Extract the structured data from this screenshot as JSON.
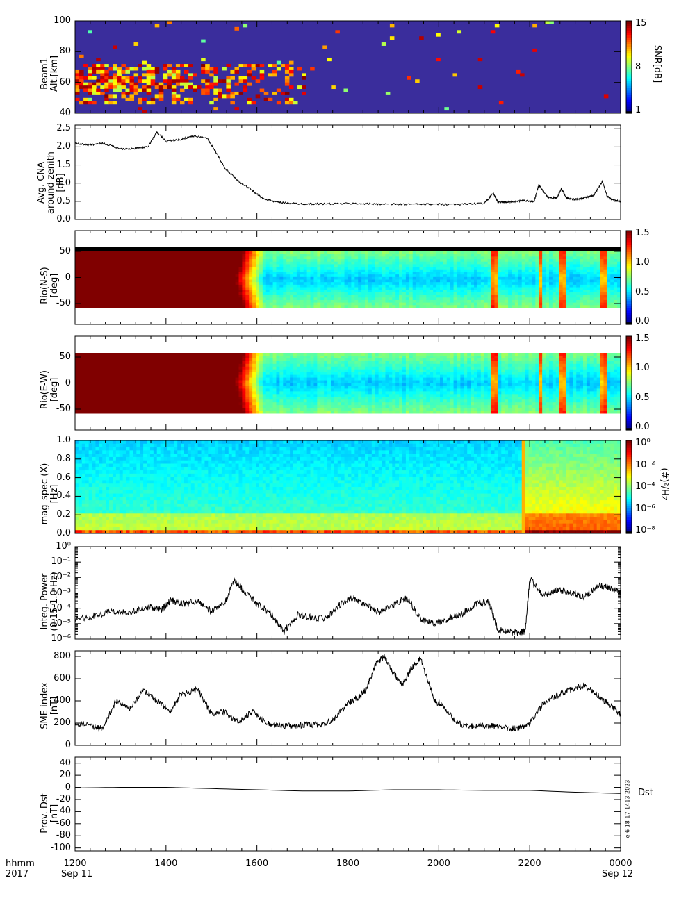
{
  "bottom_labels": {
    "hhmm": "hhmm",
    "year": "2017",
    "start_date": "Sep 11",
    "end_date": "Sep 12"
  },
  "side_annotation": "e 6 18 17 1413 2023",
  "dst_legend": "Dst",
  "x_ticks": [
    "1200",
    "1400",
    "1600",
    "1800",
    "2000",
    "2200",
    "0000"
  ],
  "chart_data": [
    {
      "type": "heatmap",
      "ylabel_line1": "Beam1",
      "ylabel_line2": "Alt.[km]",
      "yticks": [
        "40",
        "60",
        "80",
        "100"
      ],
      "ylim": [
        40,
        100
      ],
      "colorbar": {
        "label": "SNR[dB]",
        "ticks": [
          "1",
          "8",
          "15"
        ],
        "range": [
          1,
          15
        ]
      },
      "features": {
        "strong_layer_alt_km": [
          45,
          72
        ],
        "strong_layer_end_hour": 17.0
      }
    },
    {
      "type": "line",
      "ylabel_line1": "Avg. CNA",
      "ylabel_line2": "around zenith",
      "ylabel_line3": "[dB]",
      "yticks": [
        "0.0",
        "0.5",
        "1.0",
        "1.5",
        "2.0",
        "2.5"
      ],
      "ylim": [
        0,
        2.6
      ],
      "x_hours": [
        12.0,
        12.3,
        12.6,
        13.0,
        13.3,
        13.6,
        13.8,
        14.0,
        14.3,
        14.6,
        14.9,
        15.1,
        15.3,
        15.6,
        15.9,
        16.1,
        16.4,
        16.7,
        17.0,
        17.5,
        18.0,
        18.5,
        19.0,
        19.5,
        20.0,
        20.5,
        21.0,
        21.2,
        21.3,
        21.5,
        21.7,
        21.9,
        22.1,
        22.2,
        22.4,
        22.6,
        22.7,
        22.8,
        23.0,
        23.2,
        23.4,
        23.6,
        23.7,
        23.8,
        24.0
      ],
      "values": [
        2.1,
        2.05,
        2.1,
        1.95,
        1.95,
        2.0,
        2.4,
        2.15,
        2.2,
        2.3,
        2.25,
        1.85,
        1.4,
        1.05,
        0.8,
        0.6,
        0.48,
        0.45,
        0.43,
        0.43,
        0.44,
        0.43,
        0.42,
        0.42,
        0.42,
        0.42,
        0.45,
        0.72,
        0.48,
        0.48,
        0.5,
        0.52,
        0.5,
        0.95,
        0.6,
        0.6,
        0.85,
        0.6,
        0.55,
        0.6,
        0.65,
        1.05,
        0.65,
        0.55,
        0.5
      ]
    },
    {
      "type": "heatmap",
      "ylabel_line1": "Rio(N-S)",
      "ylabel_line2": "[deg]",
      "yticks": [
        "-50",
        "0",
        "50"
      ],
      "ylim": [
        -90,
        90
      ],
      "colorbar": {
        "ticks": [
          "0.0",
          "0.5",
          "1.0",
          "1.5"
        ],
        "range": [
          0,
          1.8
        ]
      },
      "features": {
        "saturated_until_hour": 15.5,
        "spikes_hours": [
          21.2,
          22.2,
          22.7,
          23.6
        ]
      }
    },
    {
      "type": "heatmap",
      "ylabel_line1": "Rio(E-W)",
      "ylabel_line2": "[deg]",
      "yticks": [
        "-50",
        "0",
        "50"
      ],
      "ylim": [
        -90,
        90
      ],
      "colorbar": {
        "ticks": [
          "0.0",
          "0.5",
          "1.0",
          "1.5"
        ],
        "range": [
          0,
          1.8
        ]
      },
      "features": {
        "saturated_until_hour": 15.5,
        "spikes_hours": [
          21.2,
          22.2,
          22.7,
          23.6
        ]
      }
    },
    {
      "type": "heatmap",
      "ylabel_line1": "mag_spec (X)",
      "ylabel_line2": "[Hz]",
      "yticks": [
        "0.0",
        "0.2",
        "0.4",
        "0.6",
        "0.8",
        "1.0"
      ],
      "ylim": [
        0,
        1.0
      ],
      "colorbar": {
        "label": "(#)²/Hz",
        "ticks": [
          "10⁻⁸",
          "10⁻⁶",
          "10⁻⁴",
          "10⁻²",
          "10⁰"
        ],
        "log": true
      },
      "features": {
        "broadband_onset_hour": 21.8
      }
    },
    {
      "type": "line",
      "ylabel_line1": "Integ. Power",
      "ylabel_line2": "(0.15-1.0 Hz)",
      "yticks": [
        "10⁻⁶",
        "10⁻⁵",
        "10⁻⁴",
        "10⁻³",
        "10⁻²",
        "10⁻¹",
        "10⁰"
      ],
      "yscale": "log",
      "ylim_exp": [
        -6,
        0
      ],
      "x_hours": [
        12.0,
        12.4,
        12.8,
        13.2,
        13.6,
        13.9,
        14.1,
        14.4,
        14.7,
        15.0,
        15.3,
        15.5,
        15.7,
        16.0,
        16.3,
        16.6,
        16.9,
        17.2,
        17.5,
        17.8,
        18.1,
        18.4,
        18.7,
        19.0,
        19.3,
        19.6,
        19.9,
        20.2,
        20.5,
        20.8,
        21.1,
        21.3,
        21.6,
        21.8,
        21.9,
        22.0,
        22.3,
        22.6,
        22.9,
        23.2,
        23.5,
        23.8,
        24.0
      ],
      "values_log10": [
        -4.7,
        -4.5,
        -4.2,
        -4.3,
        -3.9,
        -4.1,
        -3.5,
        -3.7,
        -3.5,
        -4.2,
        -3.6,
        -2.2,
        -2.8,
        -3.7,
        -4.3,
        -5.5,
        -4.4,
        -4.6,
        -4.7,
        -3.8,
        -3.3,
        -3.8,
        -4.3,
        -3.8,
        -3.3,
        -4.7,
        -5.0,
        -4.7,
        -4.4,
        -3.7,
        -3.6,
        -5.4,
        -5.6,
        -5.6,
        -5.5,
        -2.1,
        -3.2,
        -2.8,
        -3.0,
        -3.3,
        -2.5,
        -2.7,
        -3.0
      ]
    },
    {
      "type": "line",
      "ylabel_line1": "SME index",
      "ylabel_line2": "[nT]",
      "yticks": [
        "0",
        "200",
        "400",
        "600",
        "800"
      ],
      "ylim": [
        0,
        850
      ],
      "x_hours": [
        12.0,
        12.4,
        12.6,
        12.9,
        13.2,
        13.5,
        13.8,
        14.1,
        14.3,
        14.7,
        15.0,
        15.3,
        15.6,
        15.9,
        16.2,
        16.5,
        16.8,
        17.1,
        17.4,
        17.7,
        18.0,
        18.2,
        18.4,
        18.6,
        18.8,
        19.0,
        19.2,
        19.4,
        19.6,
        19.9,
        20.1,
        20.4,
        20.7,
        21.0,
        21.3,
        21.6,
        21.8,
        22.0,
        22.3,
        22.6,
        22.9,
        23.2,
        23.5,
        23.8,
        24.0
      ],
      "values": [
        200,
        170,
        150,
        400,
        320,
        500,
        400,
        300,
        450,
        500,
        280,
        300,
        200,
        310,
        200,
        180,
        170,
        190,
        180,
        240,
        380,
        420,
        500,
        720,
        800,
        650,
        550,
        700,
        780,
        400,
        350,
        200,
        170,
        180,
        170,
        150,
        160,
        200,
        380,
        450,
        500,
        540,
        450,
        350,
        280
      ]
    },
    {
      "type": "line",
      "ylabel_line1": "Prov. Dst",
      "ylabel_line2": "[nT]",
      "yticks": [
        "-100",
        "-80",
        "-60",
        "-40",
        "-20",
        "0",
        "20",
        "40"
      ],
      "ylim": [
        -105,
        50
      ],
      "x_hours": [
        12,
        13,
        14,
        15,
        16,
        17,
        18,
        19,
        20,
        21,
        22,
        23,
        24
      ],
      "values": [
        -1,
        0,
        0,
        -2,
        -4,
        -6,
        -6,
        -4,
        -4,
        -5,
        -5,
        -8,
        -10
      ]
    }
  ]
}
